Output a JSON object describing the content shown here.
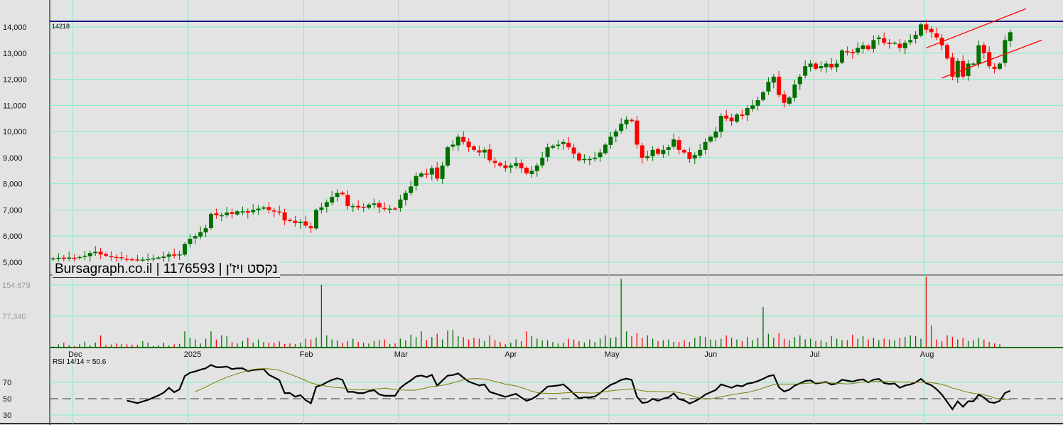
{
  "title": "Bursagraph.co.il | 1176593 | נקסט ויז'ן",
  "rsi_label": "RSI 14/14 = 50.6",
  "chart_data": {
    "type": "candlestick",
    "price_ticks": [
      "5,000",
      "6,000",
      "7,000",
      "8,000",
      "9,000",
      "10,000",
      "11,000",
      "12,000",
      "13,000",
      "14,000"
    ],
    "price_ylim": [
      5000,
      14000
    ],
    "high_line": {
      "value": 14218,
      "label": "14218",
      "color": "#000080"
    },
    "volume_ticks": [
      "77,340",
      "154,679"
    ],
    "rsi_ticks": [
      "30",
      "50",
      "70"
    ],
    "month_labels": [
      {
        "label": "Dec",
        "index": 5
      },
      {
        "label": "2025",
        "index": 27
      },
      {
        "label": "Feb",
        "index": 49
      },
      {
        "label": "Mar",
        "index": 67
      },
      {
        "label": "Apr",
        "index": 88
      },
      {
        "label": "May",
        "index": 107
      },
      {
        "label": "Jun",
        "index": 126
      },
      {
        "label": "Jul",
        "index": 146
      },
      {
        "label": "Aug",
        "index": 167
      }
    ],
    "closes": [
      5150,
      5170,
      5130,
      5180,
      5160,
      5200,
      5250,
      5350,
      5400,
      5300,
      5250,
      5200,
      5180,
      5150,
      5120,
      5100,
      5080,
      5100,
      5120,
      5150,
      5180,
      5220,
      5300,
      5250,
      5300,
      5700,
      5900,
      6000,
      6150,
      6300,
      6850,
      6800,
      6800,
      6900,
      6850,
      6950,
      6950,
      6900,
      7000,
      7050,
      7100,
      7000,
      6950,
      6900,
      6600,
      6600,
      6500,
      6550,
      6400,
      6300,
      7000,
      7100,
      7300,
      7500,
      7650,
      7600,
      7150,
      7150,
      7100,
      7100,
      7200,
      7250,
      7100,
      7050,
      7050,
      7050,
      7400,
      7650,
      7900,
      8300,
      8400,
      8350,
      8600,
      8200,
      8700,
      9400,
      9500,
      9800,
      9600,
      9400,
      9300,
      9200,
      9300,
      8900,
      8800,
      8700,
      8600,
      8700,
      8800,
      8600,
      8400,
      8500,
      8700,
      9000,
      9400,
      9450,
      9500,
      9600,
      9400,
      9150,
      8900,
      8950,
      8950,
      9000,
      9200,
      9500,
      9800,
      10000,
      10300,
      10450,
      10400,
      9500,
      9000,
      9050,
      9300,
      9150,
      9300,
      9400,
      9700,
      9300,
      9200,
      8950,
      9100,
      9300,
      9600,
      9800,
      10000,
      10600,
      10500,
      10400,
      10650,
      10600,
      10900,
      11000,
      11200,
      11500,
      11900,
      12100,
      11400,
      11100,
      11300,
      11800,
      12100,
      12500,
      12600,
      12400,
      12500,
      12600,
      12450,
      12600,
      13100,
      13050,
      13000,
      13200,
      13300,
      13150,
      13500,
      13600,
      13400,
      13350,
      13400,
      13200,
      13400,
      13500,
      13700,
      14100,
      13900,
      13800,
      13600,
      13300,
      12800,
      12100,
      12700,
      12100,
      12600,
      12600,
      13300,
      13000,
      12500,
      12400,
      12600,
      13500,
      13800
    ],
    "volumes": [
      3000,
      8000,
      12000,
      6000,
      4000,
      9000,
      15000,
      6000,
      12000,
      30000,
      6000,
      8000,
      10000,
      9000,
      8000,
      7000,
      7000,
      16000,
      12000,
      4000,
      6000,
      12000,
      5000,
      8000,
      9000,
      40000,
      24000,
      20000,
      10000,
      22000,
      40000,
      20000,
      30000,
      28000,
      14000,
      10000,
      16000,
      24000,
      12000,
      20000,
      14000,
      12000,
      12000,
      15000,
      9000,
      10000,
      9000,
      12000,
      22000,
      20000,
      25000,
      155000,
      30000,
      20000,
      18000,
      12000,
      16000,
      22000,
      14000,
      12000,
      10000,
      16000,
      18000,
      20000,
      9000,
      10000,
      22000,
      18000,
      32000,
      26000,
      40000,
      18000,
      26000,
      34000,
      20000,
      42000,
      44000,
      28000,
      26000,
      20000,
      24000,
      22000,
      16000,
      30000,
      18000,
      14000,
      8000,
      12000,
      20000,
      16000,
      40000,
      28000,
      22000,
      18000,
      18000,
      14000,
      10000,
      12000,
      22000,
      20000,
      16000,
      12000,
      20000,
      14000,
      22000,
      30000,
      24000,
      26000,
      170000,
      40000,
      28000,
      36000,
      24000,
      30000,
      22000,
      16000,
      18000,
      20000,
      14000,
      14000,
      18000,
      14000,
      24000,
      28000,
      26000,
      20000,
      18000,
      22000,
      30000,
      24000,
      20000,
      16000,
      26000,
      18000,
      24000,
      100000,
      34000,
      24000,
      36000,
      22000,
      18000,
      26000,
      30000,
      20000,
      22000,
      16000,
      18000,
      14000,
      28000,
      22000,
      18000,
      18000,
      32000,
      22000,
      28000,
      20000,
      24000,
      18000,
      22000,
      20000,
      18000,
      24000,
      26000,
      30000,
      28000,
      22000,
      175000,
      55000,
      20000,
      16000,
      30000,
      26000,
      20000,
      24000,
      16000,
      18000,
      24000,
      20000,
      14000,
      10000,
      8000
    ],
    "channel": [
      {
        "from": [
          166,
          13200
        ],
        "to": [
          185,
          14700
        ]
      },
      {
        "from": [
          169,
          12050
        ],
        "to": [
          188,
          13500
        ]
      }
    ],
    "rsi_period": 14,
    "rsi_ma_period": 14
  }
}
